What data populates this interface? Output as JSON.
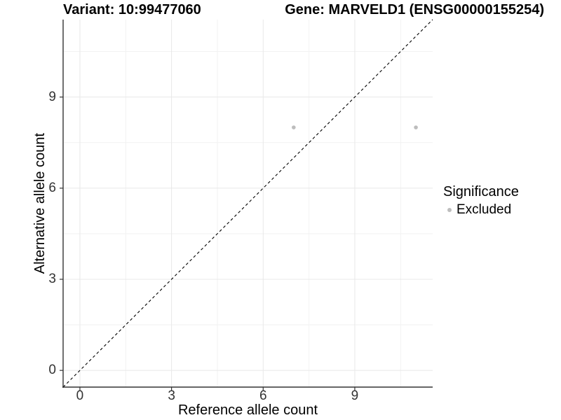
{
  "header": {
    "variant_title": "Variant: 10:99477060",
    "gene_title": "Gene: MARVELD1 (ENSG00000155254)"
  },
  "chart_data": {
    "type": "scatter",
    "xlabel": "Reference allele count",
    "ylabel": "Alternative allele count",
    "xlim": [
      -0.55,
      11.55
    ],
    "ylim": [
      -0.55,
      11.55
    ],
    "x_ticks": [
      0,
      3,
      6,
      9
    ],
    "y_ticks": [
      0,
      3,
      6,
      9
    ],
    "x_minor_ticks": [
      1.5,
      4.5,
      7.5,
      10.5
    ],
    "y_minor_ticks": [
      1.5,
      4.5,
      7.5,
      10.5
    ],
    "grid": "major+minor",
    "identity_line": {
      "style": "dashed",
      "color": "#000000",
      "from": -0.55,
      "to": 11.55
    },
    "series": [
      {
        "name": "Excluded",
        "color": "#bdbdbd",
        "point_radius": 2.8,
        "points": [
          [
            7,
            8
          ],
          [
            11,
            8
          ]
        ]
      }
    ],
    "legend": {
      "position": "right",
      "title": "Significance",
      "entries": [
        {
          "label": "Excluded",
          "color": "#bdbdbd"
        }
      ]
    }
  },
  "colors": {
    "background": "#ffffff",
    "axis_line": "#333333",
    "tick_mark": "#333333",
    "grid_major": "#e8e8e8",
    "grid_minor": "#f2f2f2",
    "title_text": "#000000",
    "tick_text": "#333333"
  }
}
